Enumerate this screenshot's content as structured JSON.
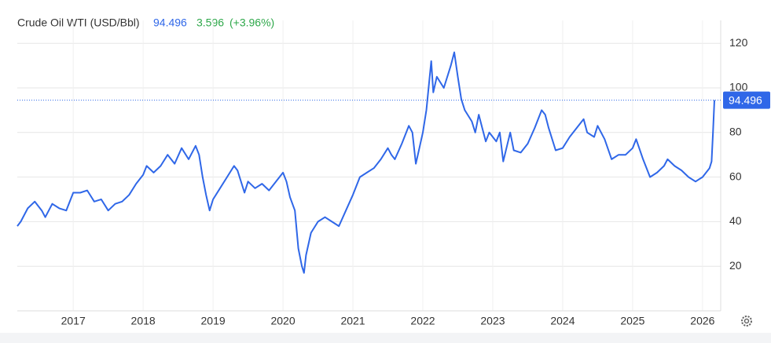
{
  "chart_data": {
    "type": "line",
    "title": "Crude Oil WTI (USD/Bbl)",
    "last_label": "94.496",
    "change": "3.596",
    "change_percent": "(+3.96%)",
    "x": [
      2016.2,
      2016.25,
      2016.35,
      2016.45,
      2016.55,
      2016.6,
      2016.7,
      2016.8,
      2016.9,
      2017.0,
      2017.1,
      2017.2,
      2017.3,
      2017.4,
      2017.5,
      2017.6,
      2017.7,
      2017.8,
      2017.9,
      2018.0,
      2018.05,
      2018.15,
      2018.25,
      2018.35,
      2018.45,
      2018.55,
      2018.65,
      2018.75,
      2018.8,
      2018.85,
      2018.9,
      2018.95,
      2019.0,
      2019.1,
      2019.2,
      2019.3,
      2019.35,
      2019.45,
      2019.5,
      2019.6,
      2019.7,
      2019.8,
      2019.9,
      2020.0,
      2020.05,
      2020.1,
      2020.17,
      2020.22,
      2020.27,
      2020.3,
      2020.33,
      2020.4,
      2020.5,
      2020.6,
      2020.7,
      2020.8,
      2020.9,
      2021.0,
      2021.1,
      2021.2,
      2021.3,
      2021.4,
      2021.5,
      2021.55,
      2021.6,
      2021.7,
      2021.8,
      2021.85,
      2021.9,
      2021.95,
      2022.0,
      2022.05,
      2022.12,
      2022.15,
      2022.2,
      2022.3,
      2022.4,
      2022.45,
      2022.5,
      2022.55,
      2022.6,
      2022.7,
      2022.75,
      2022.8,
      2022.85,
      2022.9,
      2022.95,
      2023.0,
      2023.05,
      2023.1,
      2023.15,
      2023.25,
      2023.3,
      2023.4,
      2023.5,
      2023.6,
      2023.7,
      2023.75,
      2023.8,
      2023.9,
      2024.0,
      2024.1,
      2024.2,
      2024.3,
      2024.35,
      2024.45,
      2024.5,
      2024.6,
      2024.7,
      2024.8,
      2024.9,
      2025.0,
      2025.05,
      2025.15,
      2025.25,
      2025.35,
      2025.45,
      2025.5,
      2025.6,
      2025.7,
      2025.8,
      2025.9,
      2026.0,
      2026.1,
      2026.13,
      2026.15,
      2026.17
    ],
    "series": [
      {
        "name": "Crude Oil WTI",
        "color": "#2f67e8",
        "values": [
          38,
          40,
          46,
          49,
          45,
          42,
          48,
          46,
          45,
          53,
          53,
          54,
          49,
          50,
          45,
          48,
          49,
          52,
          57,
          61,
          65,
          62,
          65,
          70,
          66,
          73,
          68,
          74,
          70,
          60,
          52,
          45,
          50,
          55,
          60,
          65,
          63,
          53,
          58,
          55,
          57,
          54,
          58,
          62,
          58,
          51,
          45,
          28,
          20,
          17,
          25,
          35,
          40,
          42,
          40,
          38,
          45,
          52,
          60,
          62,
          64,
          68,
          73,
          70,
          68,
          75,
          83,
          80,
          66,
          73,
          80,
          90,
          112,
          98,
          105,
          100,
          110,
          116,
          105,
          95,
          90,
          85,
          80,
          88,
          82,
          76,
          80,
          78,
          76,
          80,
          67,
          80,
          72,
          71,
          75,
          82,
          90,
          88,
          82,
          72,
          73,
          78,
          82,
          86,
          80,
          78,
          83,
          77,
          68,
          70,
          70,
          73,
          77,
          68,
          60,
          62,
          65,
          68,
          65,
          63,
          60,
          58,
          60,
          64,
          67,
          80,
          94.496
        ]
      }
    ],
    "xlim": [
      2016.2,
      2026.26
    ],
    "ylim": [
      0,
      125
    ],
    "xticks": [
      2017,
      2018,
      2019,
      2020,
      2021,
      2022,
      2023,
      2024,
      2025,
      2026
    ],
    "yticks": [
      20,
      40,
      60,
      80,
      100,
      120
    ],
    "grid": true
  }
}
